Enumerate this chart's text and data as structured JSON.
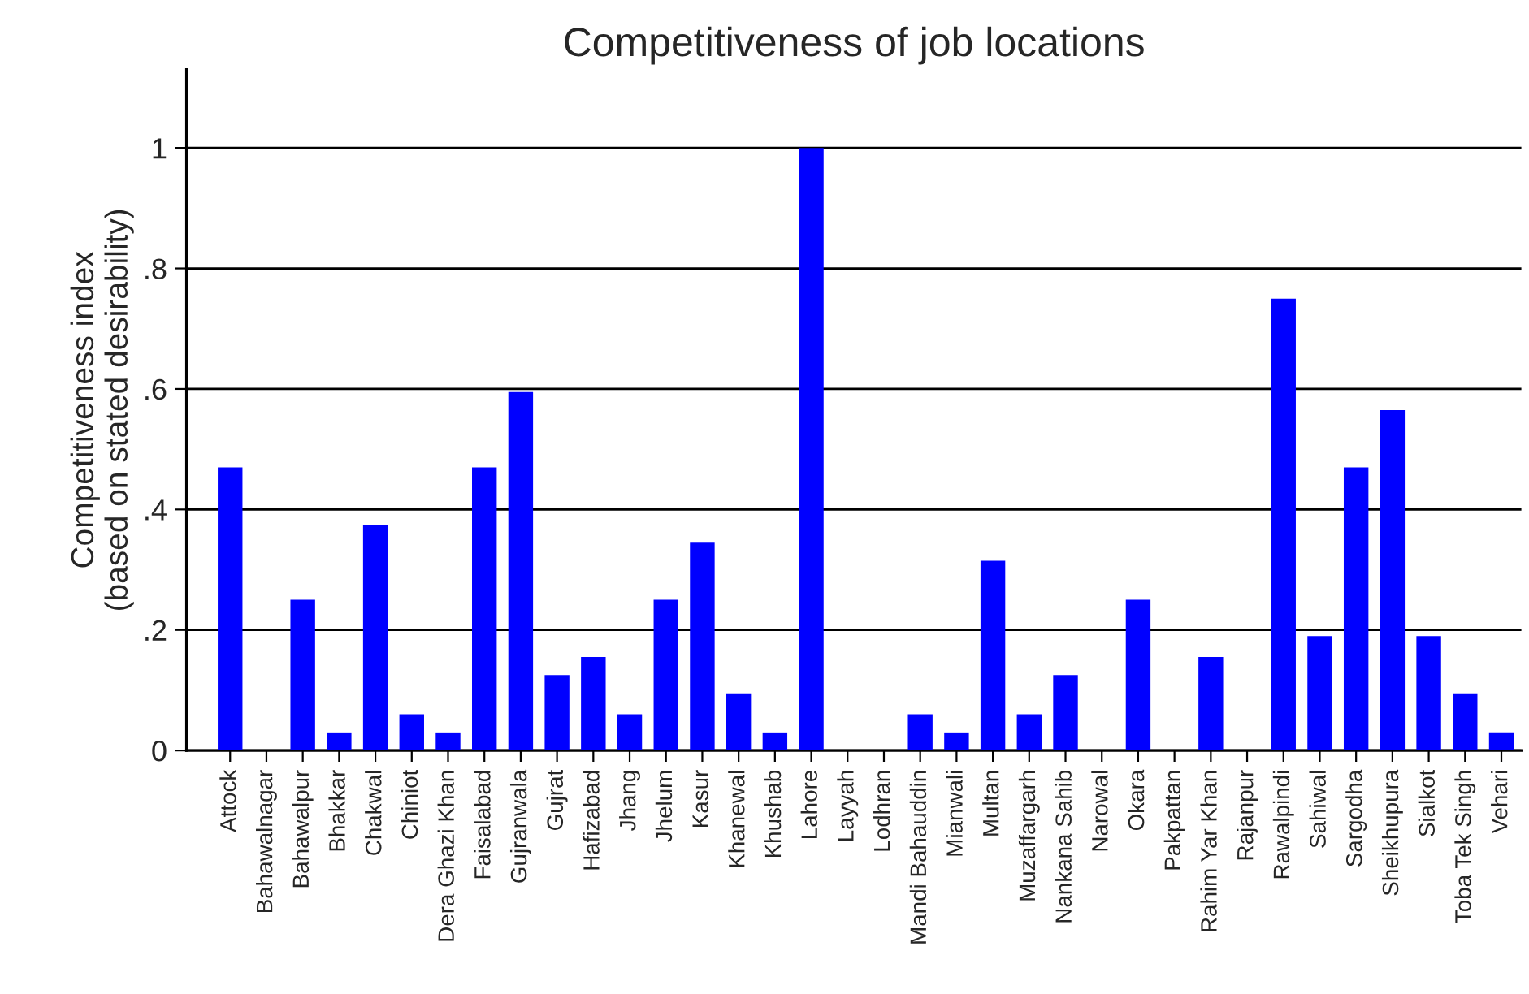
{
  "chart_data": {
    "type": "bar",
    "title": "Competitiveness of job locations",
    "ylabel": "Competitiveness index\n(based on stated desirability)",
    "categories": [
      "Attock",
      "Bahawalnagar",
      "Bahawalpur",
      "Bhakkar",
      "Chakwal",
      "Chiniot",
      "Dera Ghazi Khan",
      "Faisalabad",
      "Gujranwala",
      "Gujrat",
      "Hafizabad",
      "Jhang",
      "Jhelum",
      "Kasur",
      "Khanewal",
      "Khushab",
      "Lahore",
      "Layyah",
      "Lodhran",
      "Mandi Bahauddin",
      "Mianwali",
      "Multan",
      "Muzaffargarh",
      "Nankana Sahib",
      "Narowal",
      "Okara",
      "Pakpattan",
      "Rahim Yar Khan",
      "Rajanpur",
      "Rawalpindi",
      "Sahiwal",
      "Sargodha",
      "Sheikhupura",
      "Sialkot",
      "Toba Tek Singh",
      "Vehari"
    ],
    "values": [
      0.47,
      0,
      0.25,
      0.03,
      0.375,
      0.06,
      0.03,
      0.47,
      0.595,
      0.125,
      0.155,
      0.06,
      0.25,
      0.345,
      0.095,
      0.03,
      1,
      0,
      0,
      0.06,
      0.03,
      0.315,
      0.06,
      0.125,
      0,
      0.25,
      0,
      0.155,
      0,
      0.75,
      0.19,
      0.47,
      0.565,
      0.19,
      0.095,
      0.03
    ],
    "color": "#0000ff",
    "ylim": [
      0,
      1.13
    ],
    "yticks": [
      {
        "value": 0,
        "label": "0"
      },
      {
        "value": 0.2,
        "label": ".2"
      },
      {
        "value": 0.4,
        "label": ".4"
      },
      {
        "value": 0.6,
        "label": ".6"
      },
      {
        "value": 0.8,
        "label": ".8"
      },
      {
        "value": 1,
        "label": "1"
      }
    ],
    "grid": "y"
  }
}
